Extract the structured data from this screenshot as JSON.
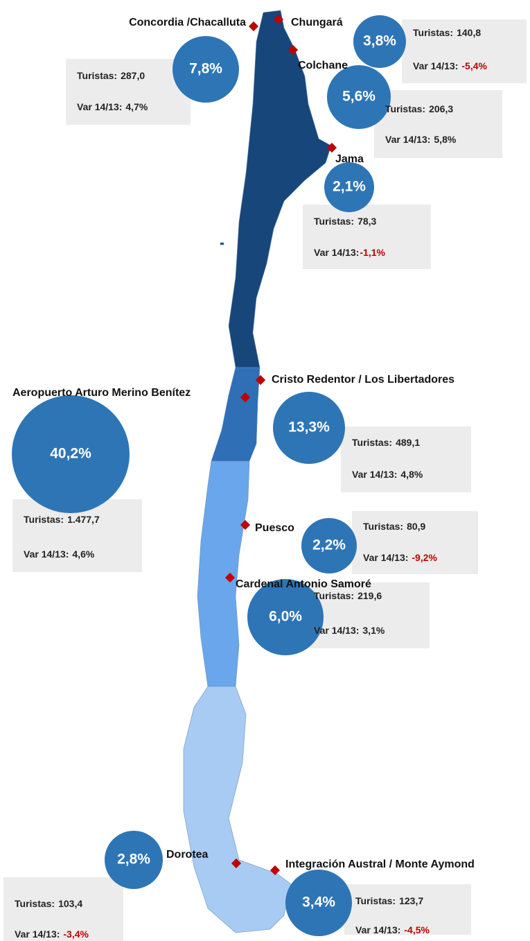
{
  "crossings": [
    {
      "name": "Concordia /Chacalluta",
      "share": "7,8%",
      "tourists_label": "Turistas:",
      "tourists": "287,0",
      "var_label": "Var 14/13:",
      "var": "4,7%"
    },
    {
      "name": "Chungará",
      "share": "3,8%",
      "tourists_label": "Turistas:",
      "tourists": "140,8",
      "var_label": "Var 14/13:",
      "var": "-5,4%"
    },
    {
      "name": "Colchane",
      "share": "5,6%",
      "tourists_label": "Turistas:",
      "tourists": "206,3",
      "var_label": "Var 14/13:",
      "var": "5,8%"
    },
    {
      "name": "Jama",
      "share": "2,1%",
      "tourists_label": "Turistas:",
      "tourists": "78,3",
      "var_label": "Var 14/13:",
      "var": "-1,1%"
    },
    {
      "name": "Cristo Redentor / Los Libertadores",
      "share": "13,3%",
      "tourists_label": "Turistas:",
      "tourists": "489,1",
      "var_label": "Var 14/13:",
      "var": "4,8%"
    },
    {
      "name": "Aeropuerto Arturo Merino Benítez",
      "share": "40,2%",
      "tourists_label": "Turistas:",
      "tourists": "1.477,7",
      "var_label": "Var 14/13:",
      "var": "4,6%"
    },
    {
      "name": "Puesco",
      "share": "2,2%",
      "tourists_label": "Turistas:",
      "tourists": "80,9",
      "var_label": "Var 14/13:",
      "var": "-9,2%"
    },
    {
      "name": "Cardenal Antonio Samoré",
      "share": "6,0%",
      "tourists_label": "Turistas:",
      "tourists": "219,6",
      "var_label": "Var 14/13:",
      "var": "3,1%"
    },
    {
      "name": "Dorotea",
      "share": "2,8%",
      "tourists_label": "Turistas:",
      "tourists": "103,4",
      "var_label": "Var 14/13:",
      "var": "-3,4%"
    },
    {
      "name": "Integración Austral / Monte Aymond",
      "share": "3,4%",
      "tourists_label": "Turistas:",
      "tourists": "123,7",
      "var_label": "Var 14/13:",
      "var": "-4,5%"
    }
  ]
}
